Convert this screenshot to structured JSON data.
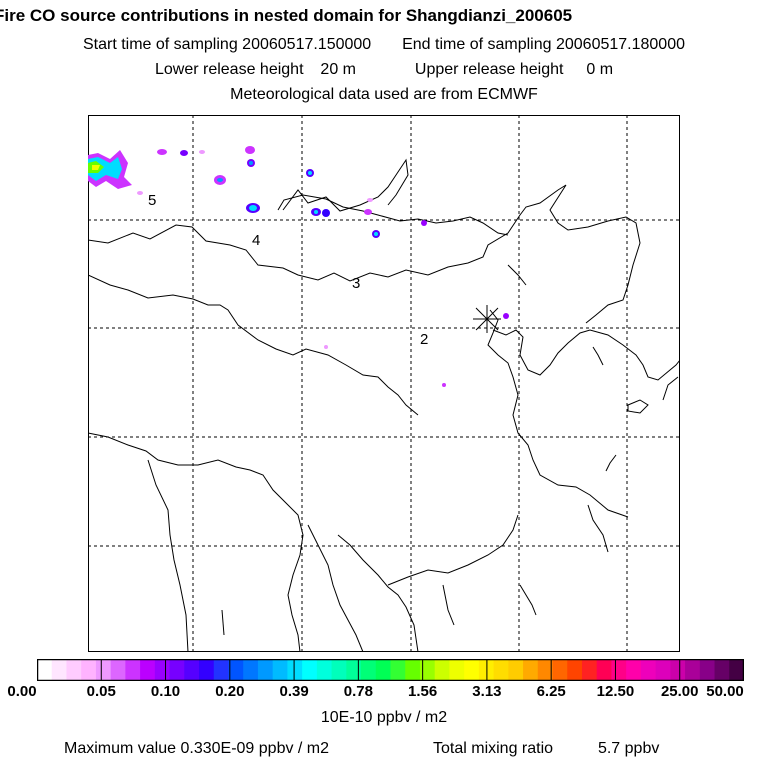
{
  "title": "Fire CO source contributions in nested domain for Shangdianzi_200605",
  "start_label": "Start time of sampling",
  "start_value": "20060517.150000",
  "end_label": "End time of sampling",
  "end_value": "20060517.180000",
  "lower_label": "Lower release height",
  "lower_value": "20 m",
  "upper_label": "Upper release height",
  "upper_value": "0 m",
  "met_note": "Meteorological data used are from ECMWF",
  "map": {
    "contour_labels": [
      "5",
      "4",
      "3",
      "2"
    ],
    "station_marker": "Shangdianzi"
  },
  "colorbar": {
    "colors": [
      "#ffffff",
      "#ffe6ff",
      "#ffccff",
      "#ffb3ff",
      "#ee99ff",
      "#dd66ff",
      "#cc33ff",
      "#bb00ff",
      "#9900ff",
      "#7700ff",
      "#5500ff",
      "#3300ff",
      "#2233ff",
      "#0055ff",
      "#0077ff",
      "#0099ff",
      "#00bbff",
      "#00ddff",
      "#00ffff",
      "#00ffdd",
      "#00ffbb",
      "#00ff99",
      "#00ff77",
      "#00ff55",
      "#33ff33",
      "#66ff00",
      "#99ff00",
      "#ccff00",
      "#eeff00",
      "#ffff00",
      "#ffee00",
      "#ffdd00",
      "#ffcc00",
      "#ffaa00",
      "#ff8800",
      "#ff6600",
      "#ff4400",
      "#ff2222",
      "#ff0055",
      "#ff0088",
      "#ff00aa",
      "#ee00bb",
      "#dd00bb",
      "#cc00aa",
      "#aa0099",
      "#880088",
      "#660066",
      "#440044"
    ],
    "tick_labels": [
      "0.00",
      "0.05",
      "0.10",
      "0.20",
      "0.39",
      "0.78",
      "1.56",
      "3.13",
      "6.25",
      "12.50",
      "25.00",
      "50.00"
    ],
    "units": "10E-10 ppbv / m2"
  },
  "footer": {
    "max_label": "Maximum value",
    "max_value": "0.330E-09 ppbv / m2",
    "total_label": "Total mixing ratio",
    "total_value": "5.7 ppbv"
  }
}
